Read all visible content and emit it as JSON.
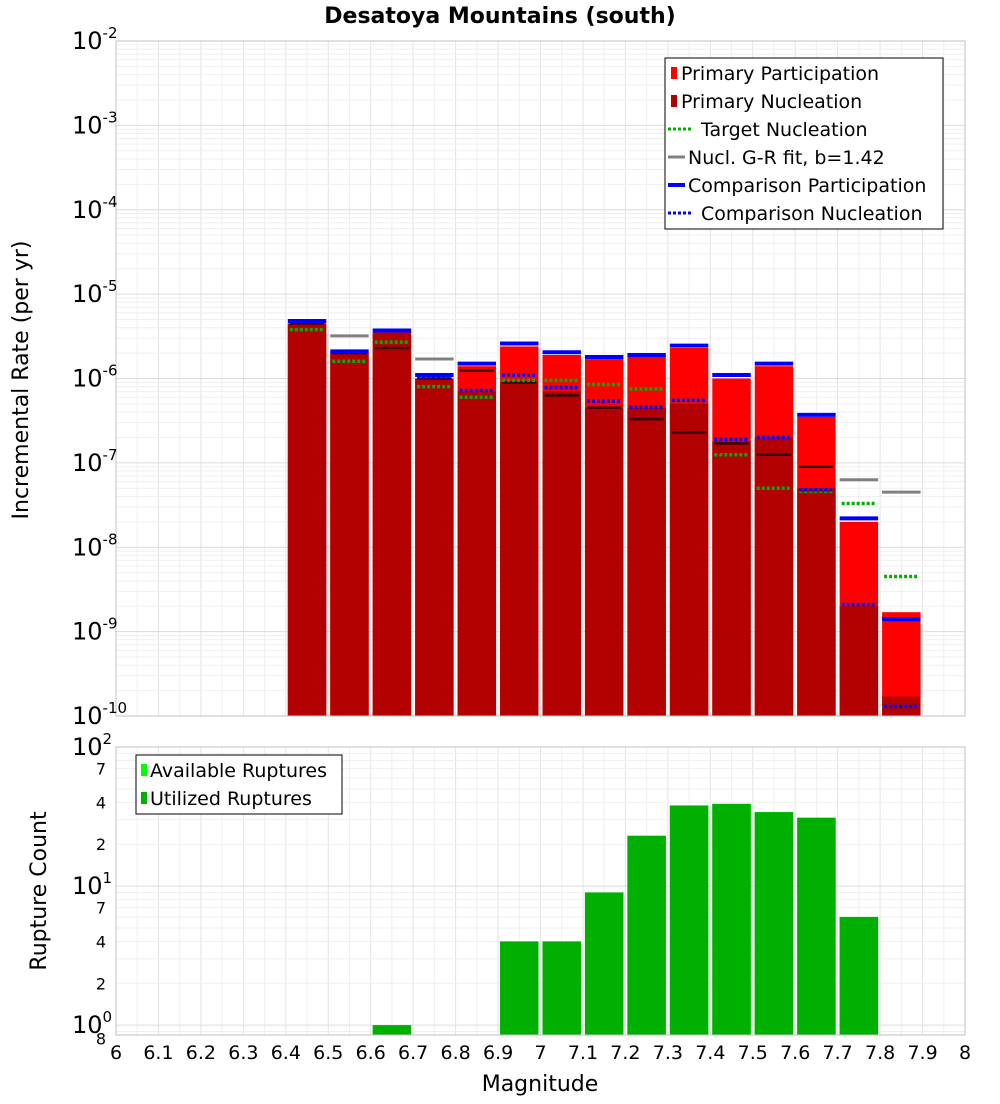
{
  "chart_data": [
    {
      "type": "bar",
      "title": "Desatoya Mountains (south)",
      "ylabel": "Incremental Rate (per yr)",
      "yscale": "log",
      "ylim": [
        1e-10,
        0.01
      ],
      "xlim": [
        6.0,
        8.0
      ],
      "grid": true,
      "legend_position": "top-right",
      "bin_width": 0.1,
      "y_ticks": [
        {
          "base": "10",
          "exp": "-2"
        },
        {
          "base": "10",
          "exp": "-3"
        },
        {
          "base": "10",
          "exp": "-4"
        },
        {
          "base": "10",
          "exp": "-5"
        },
        {
          "base": "10",
          "exp": "-6"
        },
        {
          "base": "10",
          "exp": "-7"
        },
        {
          "base": "10",
          "exp": "-8"
        },
        {
          "base": "10",
          "exp": "-9"
        },
        {
          "base": "10",
          "exp": "-10"
        }
      ],
      "legend": [
        {
          "label": "Primary Participation",
          "style": "bar",
          "color": "#ff0000"
        },
        {
          "label": "Primary Nucleation",
          "style": "bar",
          "color": "#b30000"
        },
        {
          "label": "Target Nucleation",
          "style": "dotted",
          "color": "#00b000"
        },
        {
          "label": "Nucl. G-R fit, b=1.42",
          "style": "solid",
          "color": "#808080"
        },
        {
          "label": "Comparison Participation",
          "style": "solid-thick",
          "color": "#0000ff"
        },
        {
          "label": "Comparison Nucleation",
          "style": "dotted",
          "color": "#0000ff"
        }
      ],
      "x": [
        6.45,
        6.55,
        6.65,
        6.75,
        6.85,
        6.95,
        7.05,
        7.15,
        7.25,
        7.35,
        7.45,
        7.55,
        7.65,
        7.75,
        7.85
      ],
      "series": [
        {
          "name": "Primary Participation",
          "color": "#ff0000",
          "values": [
            4.5e-06,
            2e-06,
            3.5e-06,
            1e-06,
            1.4e-06,
            2.4e-06,
            1.9e-06,
            1.7e-06,
            1.8e-06,
            2.3e-06,
            1e-06,
            1.4e-06,
            3.5e-07,
            2e-08,
            1.7e-09
          ]
        },
        {
          "name": "Primary Nucleation",
          "color": "#b30000",
          "values": [
            4.5e-06,
            2e-06,
            3.5e-06,
            1e-06,
            7e-07,
            9e-07,
            7e-07,
            4.5e-07,
            4.5e-07,
            5e-07,
            1.8e-07,
            2e-07,
            5e-08,
            2e-09,
            1.7e-10
          ]
        },
        {
          "name": "Target Nucleation",
          "color": "#00b000",
          "values": [
            3.8e-06,
            1.6e-06,
            2.7e-06,
            8e-07,
            6e-07,
            9.5e-07,
            9.5e-07,
            8.5e-07,
            7.5e-07,
            5.5e-07,
            1.25e-07,
            5e-08,
            4.6e-08,
            3.3e-08,
            4.5e-09
          ]
        },
        {
          "name": "Nucl. G-R fit, b=1.42",
          "color": "#808080",
          "values": [
            null,
            3.2e-06,
            null,
            1.7e-06,
            null,
            null,
            null,
            null,
            null,
            null,
            null,
            null,
            null,
            6.3e-08,
            4.5e-08
          ]
        },
        {
          "name": "G-R fit (overlay)",
          "color": "#330000",
          "values": [
            4.5e-06,
            2e-06,
            2.3e-06,
            1e-06,
            1.25e-06,
            9e-07,
            6.3e-07,
            4.5e-07,
            3.3e-07,
            2.3e-07,
            1.7e-07,
            1.25e-07,
            9e-08,
            null,
            null
          ]
        },
        {
          "name": "Comparison Participation",
          "color": "#0000ff",
          "values": [
            4.8e-06,
            2.1e-06,
            3.7e-06,
            1.1e-06,
            1.5e-06,
            2.6e-06,
            2.05e-06,
            1.8e-06,
            1.9e-06,
            2.45e-06,
            1.1e-06,
            1.5e-06,
            3.7e-07,
            2.2e-08,
            1.4e-09
          ]
        },
        {
          "name": "Comparison Nucleation",
          "color": "#0000ff",
          "values": [
            4.8e-06,
            2.1e-06,
            3.7e-06,
            1.05e-06,
            7.2e-07,
            1.1e-06,
            7.8e-07,
            5.4e-07,
            4.6e-07,
            5.5e-07,
            1.9e-07,
            2e-07,
            4.8e-08,
            2.1e-09,
            1.3e-10
          ]
        }
      ]
    },
    {
      "type": "bar",
      "xlabel": "Magnitude",
      "ylabel": "Rupture Count",
      "yscale": "log",
      "ylim": [
        0.85,
        100
      ],
      "xlim": [
        6.0,
        8.0
      ],
      "grid": true,
      "legend_position": "top-left",
      "bin_width": 0.1,
      "x_ticks": [
        "6",
        "6.1",
        "6.2",
        "6.3",
        "6.4",
        "6.5",
        "6.6",
        "6.7",
        "6.8",
        "6.9",
        "7",
        "7.1",
        "7.2",
        "7.3",
        "7.4",
        "7.5",
        "7.6",
        "7.7",
        "7.8",
        "7.9",
        "8"
      ],
      "y_ticks": [
        {
          "base": "10",
          "exp": "2",
          "value": 100
        },
        {
          "label": "7",
          "value": 70
        },
        {
          "label": "4",
          "value": 40
        },
        {
          "label": "2",
          "value": 20
        },
        {
          "base": "10",
          "exp": "1",
          "value": 10
        },
        {
          "label": "7",
          "value": 7
        },
        {
          "label": "4",
          "value": 4
        },
        {
          "label": "2",
          "value": 2
        },
        {
          "base": "10",
          "exp": "0",
          "value": 1
        },
        {
          "label": "8",
          "value": 0.8
        }
      ],
      "legend": [
        {
          "label": "Available Ruptures",
          "style": "bar",
          "color": "#00ff00"
        },
        {
          "label": "Utilized Ruptures",
          "style": "bar",
          "color": "#00b000"
        }
      ],
      "x": [
        6.45,
        6.55,
        6.65,
        6.75,
        6.85,
        6.95,
        7.05,
        7.15,
        7.25,
        7.35,
        7.45,
        7.55,
        7.65,
        7.75,
        7.85
      ],
      "series": [
        {
          "name": "Available Ruptures",
          "color": "#00ff00",
          "values": [
            0,
            0,
            1,
            0,
            0,
            4,
            4,
            9,
            23,
            38,
            39,
            34,
            31,
            6,
            0
          ]
        },
        {
          "name": "Utilized Ruptures",
          "color": "#00b000",
          "values": [
            0,
            0,
            1,
            0,
            0,
            4,
            4,
            9,
            23,
            38,
            39,
            34,
            31,
            6,
            0
          ]
        }
      ]
    }
  ]
}
